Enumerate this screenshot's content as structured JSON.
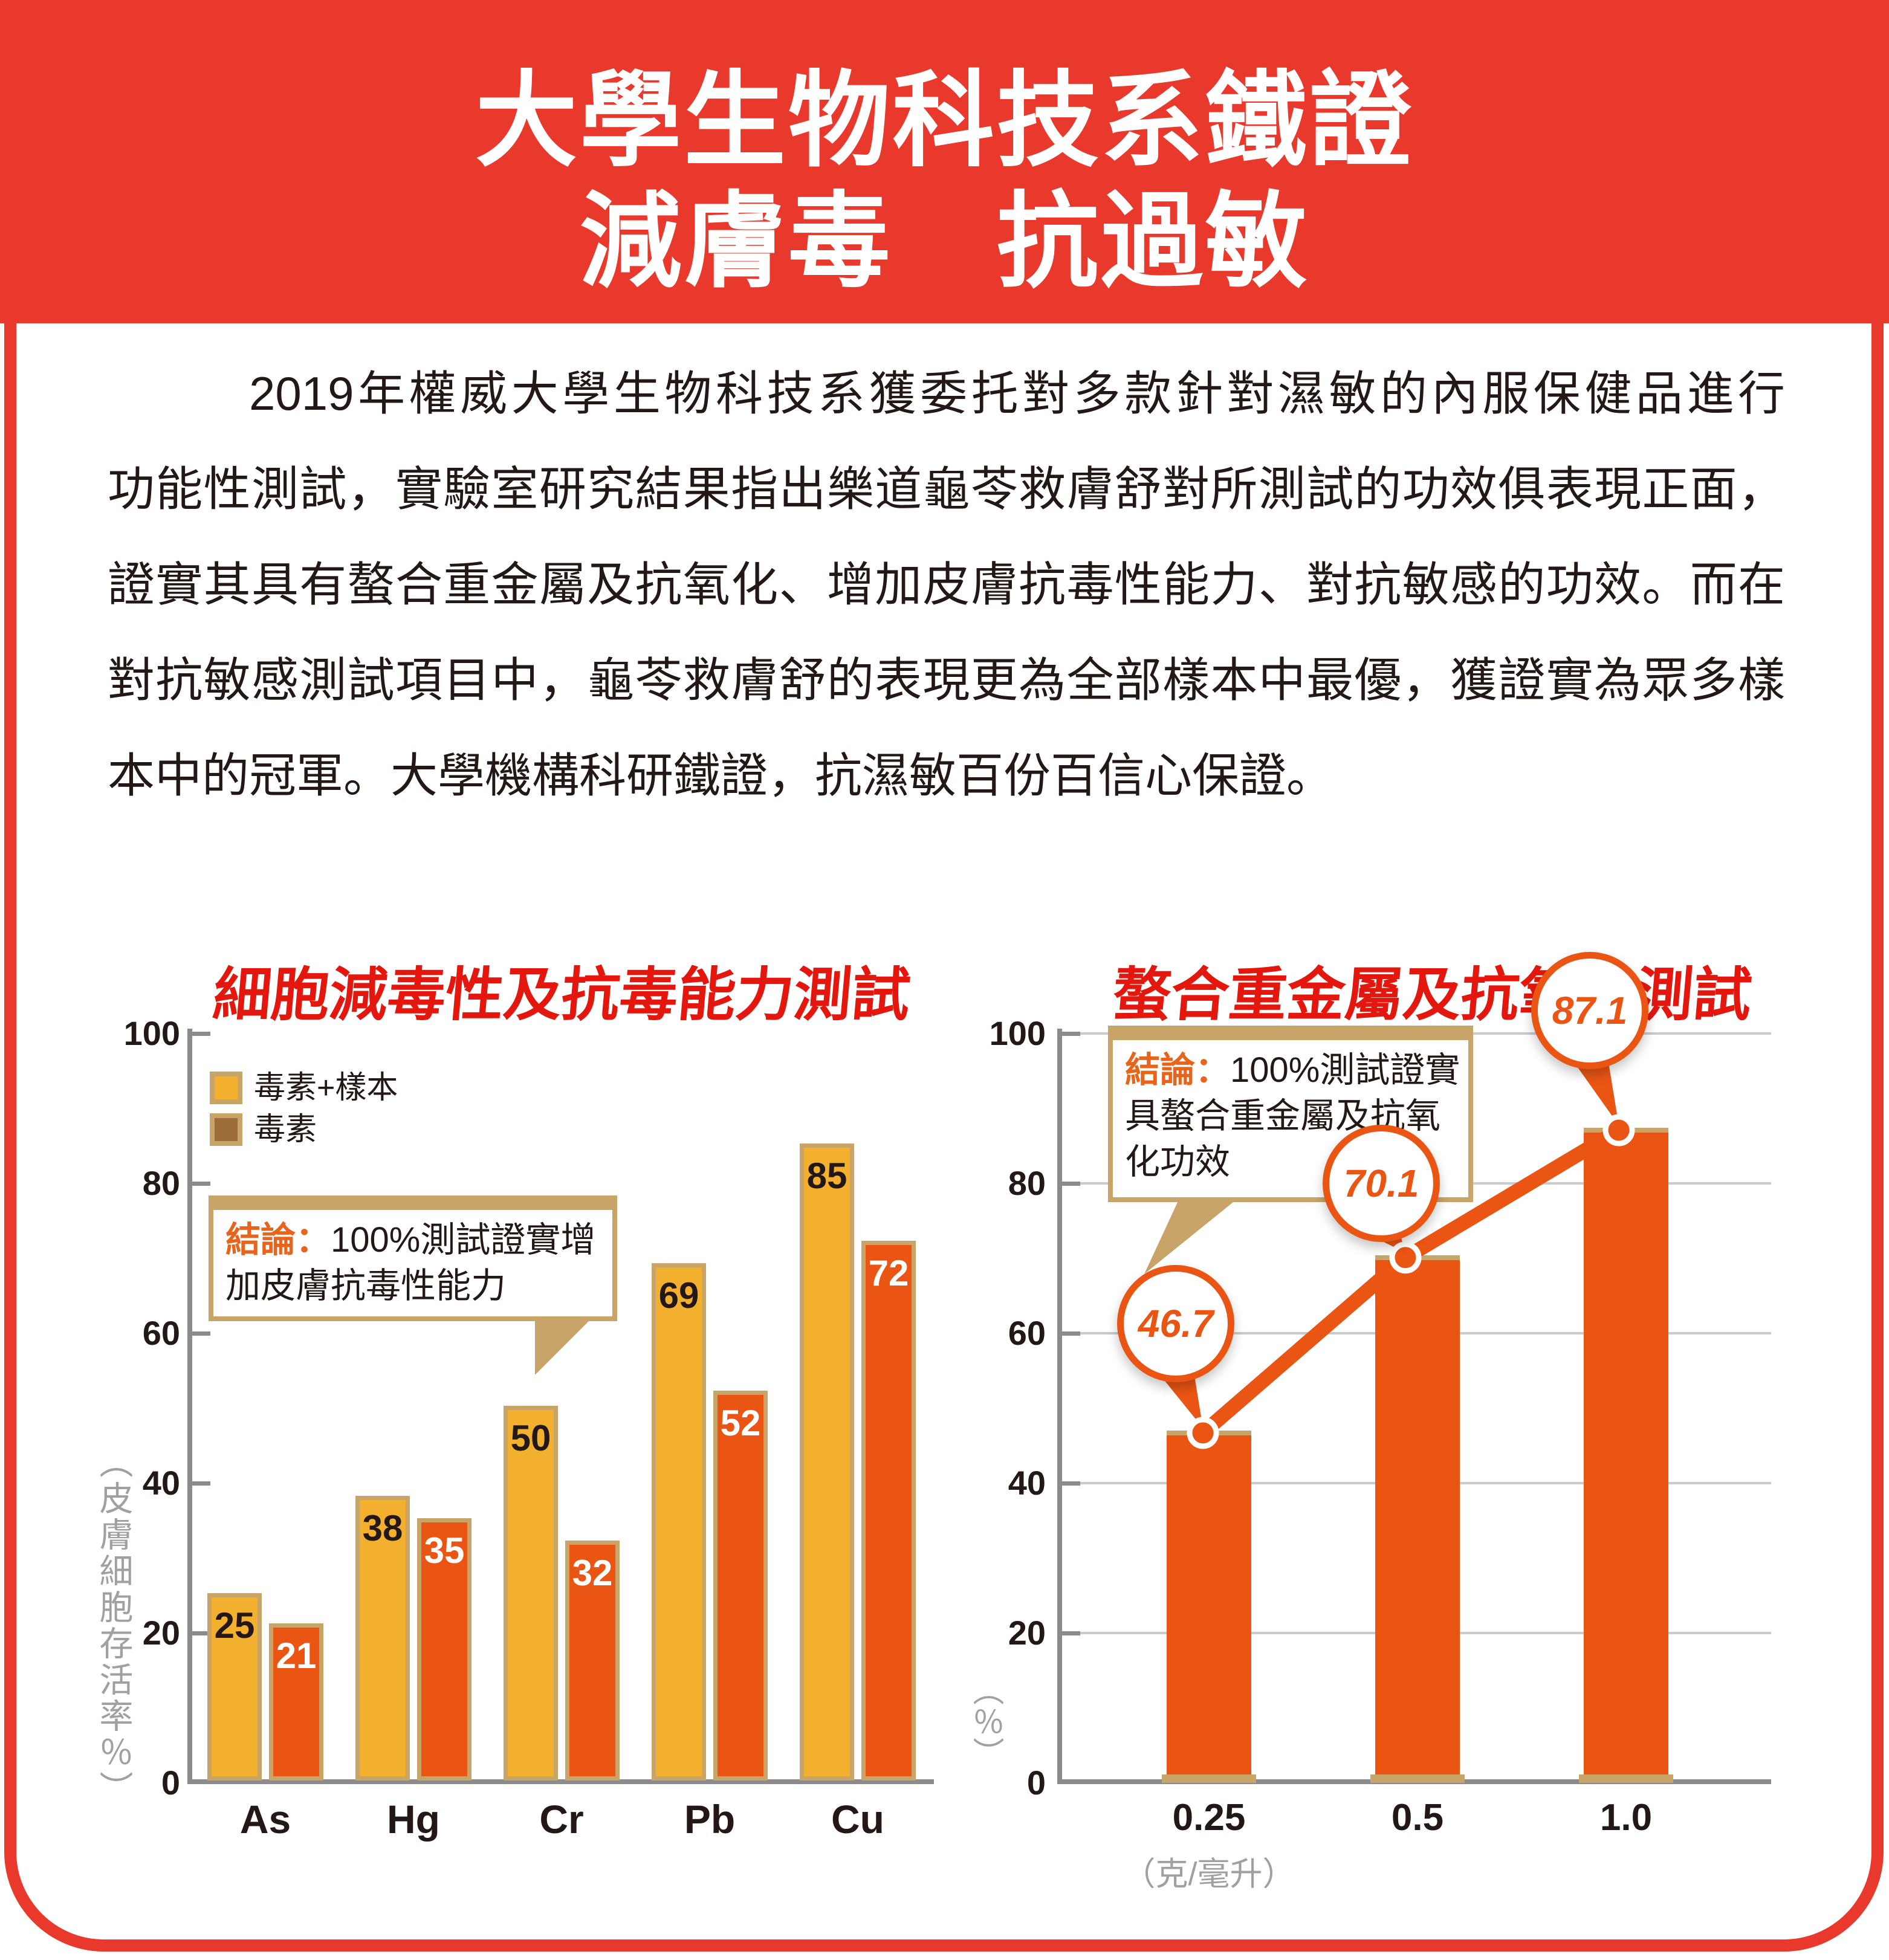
{
  "header": {
    "line1": "大學生物科技系鐵證",
    "line2": "減膚毒　抗過敏"
  },
  "body": {
    "lines": [
      "2019年權威大學生物科技系獲委托對多款針對濕敏的內服保健品進行",
      "功能性測試，實驗室研究結果指出樂道龜苓救膚舒對所測試的功效俱表現正面，",
      "證實其具有螯合重金屬及抗氧化、增加皮膚抗毒性能力、對抗敏感的功效。而在",
      "對抗敏感測試項目中，龜苓救膚舒的表現更為全部樣本中最優，獲證實為眾多樣",
      "本中的冠軍。大學機構科研鐵證，抗濕敏百份百信心保證。"
    ]
  },
  "colors": {
    "header_red": "#e8392c",
    "title_red": "#e3170d",
    "yellow": "#f3b02f",
    "orange": "#ea5514",
    "brown": "#9c6d3b",
    "tan": "#c8a468",
    "axis_gray": "#8b8b8b",
    "grid_gray": "#c9caca",
    "text_gray": "#9fa0a0",
    "ink": "#231815",
    "accent_orange": "#e8641b"
  },
  "chart_data": [
    {
      "id": "cell-detox-test",
      "type": "bar",
      "title": "細胞減毒性及抗毒能力測試",
      "categories": [
        "As",
        "Hg",
        "Cr",
        "Pb",
        "Cu"
      ],
      "series": [
        {
          "name": "毒素+樣本",
          "color": "#f3b02f",
          "values": [
            25,
            38,
            50,
            69,
            85
          ]
        },
        {
          "name": "毒素",
          "color": "#ea5514",
          "legend_color": "#9c6d3b",
          "values": [
            21,
            35,
            32,
            52,
            72
          ]
        }
      ],
      "ylabel": "（皮膚細胞存活率％）",
      "yticks": [
        0,
        20,
        40,
        60,
        80,
        100
      ],
      "ylim": [
        0,
        100
      ],
      "grid": false,
      "legend_position": "top-left",
      "conclusion": {
        "label": "結論：",
        "lines": [
          "100%測試證實增",
          "加皮膚抗毒性能力"
        ]
      }
    },
    {
      "id": "heavy-metal-chelation-test",
      "type": "bar",
      "title": "螯合重金屬及抗氧化測試",
      "categories": [
        "0.25",
        "0.5",
        "1.0"
      ],
      "values": [
        46.7,
        70.1,
        87.1
      ],
      "bar_color": "#ea5514",
      "xlabel": "（克/毫升）",
      "ylabel": "（％）",
      "yticks": [
        0,
        20,
        40,
        60,
        80,
        100
      ],
      "ylim": [
        0,
        100
      ],
      "grid": true,
      "conclusion": {
        "label": "結論：",
        "lines": [
          "100%測試證實",
          "具螯合重金屬及抗氧",
          "化功效"
        ]
      }
    }
  ]
}
